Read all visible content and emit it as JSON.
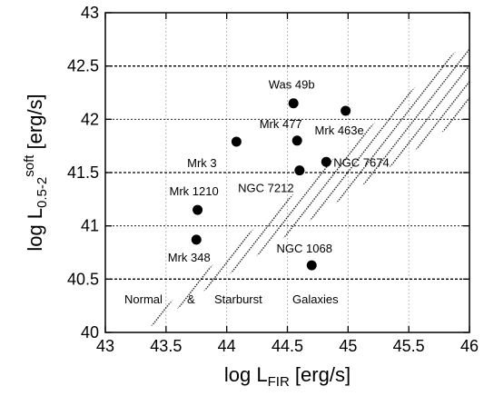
{
  "chart_data": {
    "type": "scatter",
    "title": "",
    "xlim": [
      43,
      46
    ],
    "ylim": [
      40,
      43
    ],
    "x_ticks": [
      43,
      43.5,
      44,
      44.5,
      45,
      45.5,
      46
    ],
    "x_tick_labels": [
      "43",
      "43.5",
      "44",
      "44.5",
      "45",
      "45.5",
      "46"
    ],
    "y_ticks": [
      40,
      40.5,
      41,
      41.5,
      42,
      42.5,
      43
    ],
    "y_tick_labels": [
      "40",
      "40.5",
      "41",
      "41.5",
      "42",
      "42.5",
      "43"
    ],
    "xlabel": {
      "main": "log L",
      "sub": "FIR",
      "rest": " [erg/s]"
    },
    "ylabel": {
      "main": "log L",
      "sub": "0.5-2",
      "sup": "soft",
      "rest": " [erg/s]"
    },
    "grid": true,
    "band": {
      "label_parts": [
        "Normal",
        "&",
        "Starburst",
        "Galaxies"
      ],
      "lower_edge": [
        [
          43.3,
          40.0
        ],
        [
          46.0,
          42.05
        ]
      ],
      "upper_edge": [
        [
          43.25,
          40.0
        ],
        [
          46.0,
          42.75
        ]
      ]
    },
    "points": [
      {
        "name": "Was 49b",
        "x": 44.55,
        "y": 42.15
      },
      {
        "name": "Mrk 463e",
        "x": 44.98,
        "y": 42.08
      },
      {
        "name": "Mrk 477",
        "x": 44.58,
        "y": 41.8
      },
      {
        "name": "Mrk 3",
        "x": 44.08,
        "y": 41.79
      },
      {
        "name": "NGC 7674",
        "x": 44.82,
        "y": 41.6
      },
      {
        "name": "NGC 7212",
        "x": 44.6,
        "y": 41.52
      },
      {
        "name": "Mrk 1210",
        "x": 43.76,
        "y": 41.15
      },
      {
        "name": "Mrk 348",
        "x": 43.75,
        "y": 40.87
      },
      {
        "name": "NGC 1068",
        "x": 44.7,
        "y": 40.63
      }
    ]
  }
}
